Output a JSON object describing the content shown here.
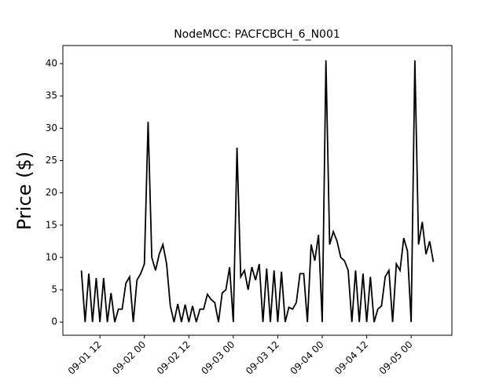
{
  "chart_data": {
    "type": "line",
    "title": "NodeMCC: PACFCBCH_6_N001",
    "y_label": "Price ($)",
    "x": [
      "09-01 07",
      "09-01 08",
      "09-01 09",
      "09-01 10",
      "09-01 11",
      "09-01 12",
      "09-01 13",
      "09-01 14",
      "09-01 15",
      "09-01 16",
      "09-01 17",
      "09-01 18",
      "09-01 19",
      "09-01 20",
      "09-01 21",
      "09-01 22",
      "09-01 23",
      "09-02 00",
      "09-02 01",
      "09-02 02",
      "09-02 03",
      "09-02 04",
      "09-02 05",
      "09-02 06",
      "09-02 07",
      "09-02 08",
      "09-02 09",
      "09-02 10",
      "09-02 11",
      "09-02 12",
      "09-02 13",
      "09-02 14",
      "09-02 15",
      "09-02 16",
      "09-02 17",
      "09-02 18",
      "09-02 19",
      "09-02 20",
      "09-02 21",
      "09-02 22",
      "09-02 23",
      "09-03 00",
      "09-03 01",
      "09-03 02",
      "09-03 03",
      "09-03 04",
      "09-03 05",
      "09-03 06",
      "09-03 07",
      "09-03 08",
      "09-03 09",
      "09-03 10",
      "09-03 11",
      "09-03 12",
      "09-03 13",
      "09-03 14",
      "09-03 15",
      "09-03 16",
      "09-03 17",
      "09-03 18",
      "09-03 19",
      "09-03 20",
      "09-03 21",
      "09-03 22",
      "09-03 23",
      "09-04 00",
      "09-04 01",
      "09-04 02",
      "09-04 03",
      "09-04 04",
      "09-04 05",
      "09-04 06",
      "09-04 07",
      "09-04 08",
      "09-04 09",
      "09-04 10",
      "09-04 11",
      "09-04 12",
      "09-04 13",
      "09-04 14",
      "09-04 15",
      "09-04 16",
      "09-04 17",
      "09-04 18",
      "09-04 19",
      "09-04 20",
      "09-04 21",
      "09-04 22",
      "09-04 23",
      "09-05 00",
      "09-05 01",
      "09-05 02",
      "09-05 03",
      "09-05 04",
      "09-05 05",
      "09-05 06"
    ],
    "series": [
      {
        "color": "#000000",
        "values": [
          8,
          0,
          7.5,
          0,
          6.8,
          0,
          6.8,
          0,
          4.5,
          0,
          2,
          2,
          6,
          7,
          0,
          6.5,
          7.5,
          9,
          31,
          10,
          8,
          10.5,
          12,
          9,
          2.5,
          0,
          2.8,
          0,
          2.7,
          0,
          2.5,
          0,
          2,
          2,
          4.3,
          3.5,
          3,
          0,
          4.5,
          5,
          8.5,
          0,
          27,
          7,
          8,
          5,
          8.5,
          6.5,
          9,
          0,
          8.3,
          0,
          8,
          0,
          7.8,
          0,
          2.3,
          2,
          3,
          7.5,
          7.5,
          0,
          12,
          9.5,
          13.5,
          0,
          40.5,
          12,
          14,
          12.5,
          10,
          9.5,
          8,
          0,
          8,
          0,
          7.5,
          0,
          7,
          0,
          2,
          2.5,
          7,
          8,
          0,
          9,
          8,
          13,
          11,
          0,
          40.5,
          12,
          15.5,
          10.5,
          12.5,
          9.3
        ]
      }
    ],
    "xlim": [
      "09-01 02",
      "09-05 11"
    ],
    "xticks": [
      "09-01 12",
      "09-02 00",
      "09-02 12",
      "09-03 00",
      "09-03 12",
      "09-04 00",
      "09-04 12",
      "09-05 00"
    ],
    "ylim": [
      -2.04,
      42.8
    ],
    "yticks": [
      0,
      5,
      10,
      15,
      20,
      25,
      30,
      35,
      40
    ]
  }
}
